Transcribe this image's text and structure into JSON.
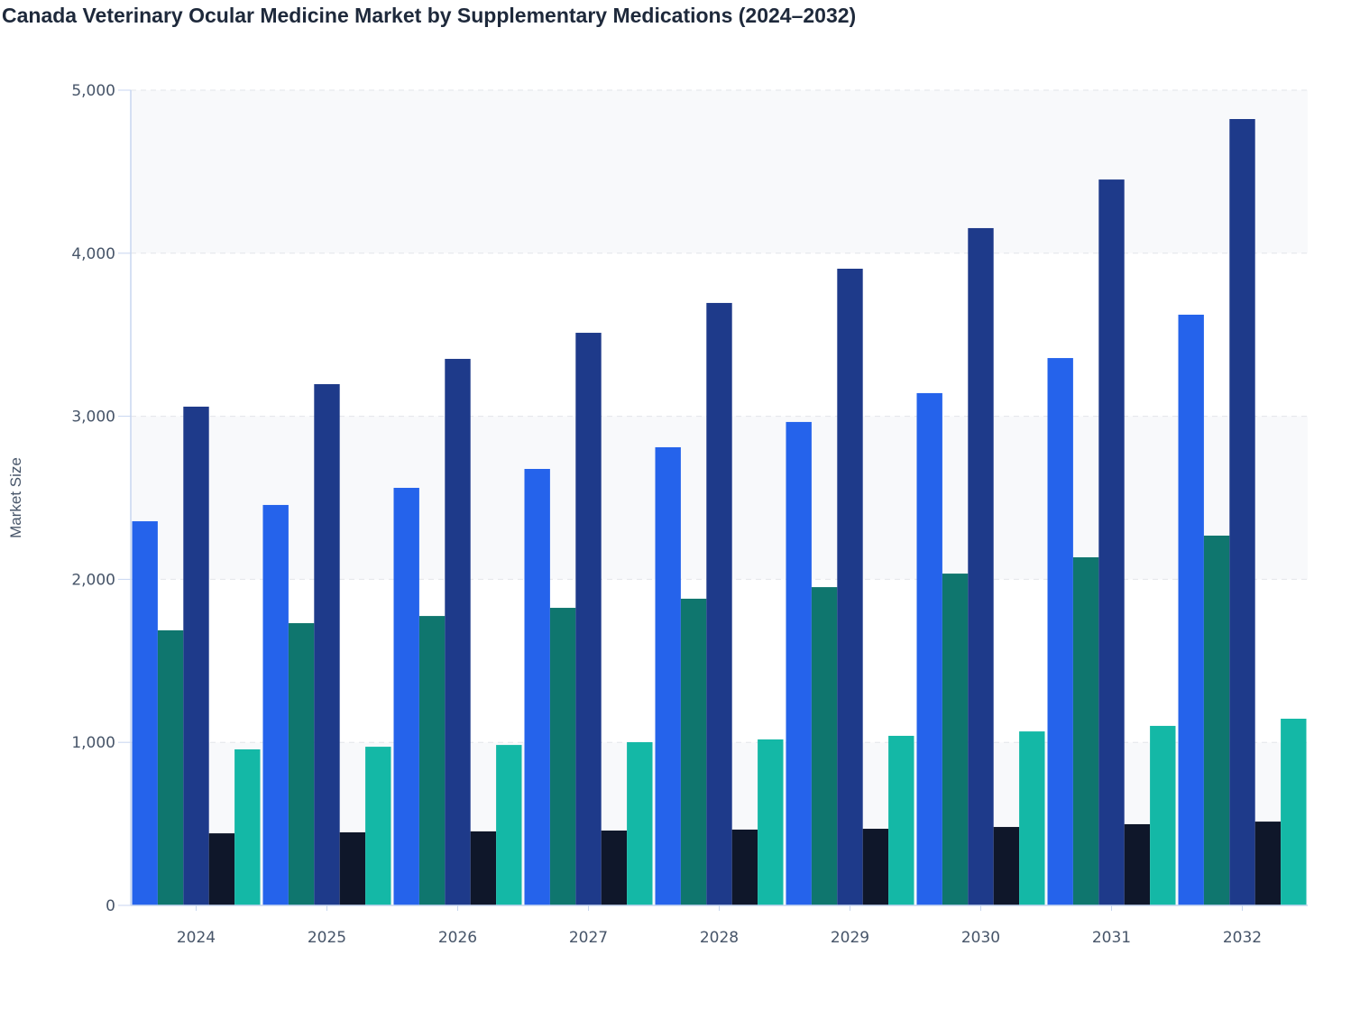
{
  "chart_data": {
    "type": "bar",
    "title": "Canada Veterinary Ocular Medicine Market by Supplementary Medications (2024–2032)",
    "xlabel": "",
    "ylabel": "Market Size",
    "ylim": [
      0,
      5000
    ],
    "yticks": [
      0,
      1000,
      2000,
      3000,
      4000,
      5000
    ],
    "ytick_labels": [
      "0",
      "1,000",
      "2,000",
      "3,000",
      "4,000",
      "5,000"
    ],
    "grid": true,
    "legend": "none",
    "categories": [
      "2024",
      "2025",
      "2026",
      "2027",
      "2028",
      "2029",
      "2030",
      "2031",
      "2032"
    ],
    "series": [
      {
        "color": "#2563eb",
        "values": [
          2356,
          2456,
          2561,
          2677,
          2810,
          2965,
          3142,
          3357,
          3623
        ]
      },
      {
        "color": "#0f766e",
        "values": [
          1687,
          1731,
          1775,
          1825,
          1881,
          1952,
          2035,
          2135,
          2268
        ]
      },
      {
        "color": "#1e3a8a",
        "values": [
          3059,
          3197,
          3352,
          3512,
          3695,
          3905,
          4154,
          4452,
          4823
        ]
      },
      {
        "color": "#0f172a",
        "values": [
          442,
          448,
          454,
          459,
          465,
          470,
          481,
          498,
          514
        ]
      },
      {
        "color": "#14b8a6",
        "values": [
          957,
          973,
          984,
          1001,
          1018,
          1040,
          1067,
          1101,
          1145
        ]
      }
    ]
  }
}
